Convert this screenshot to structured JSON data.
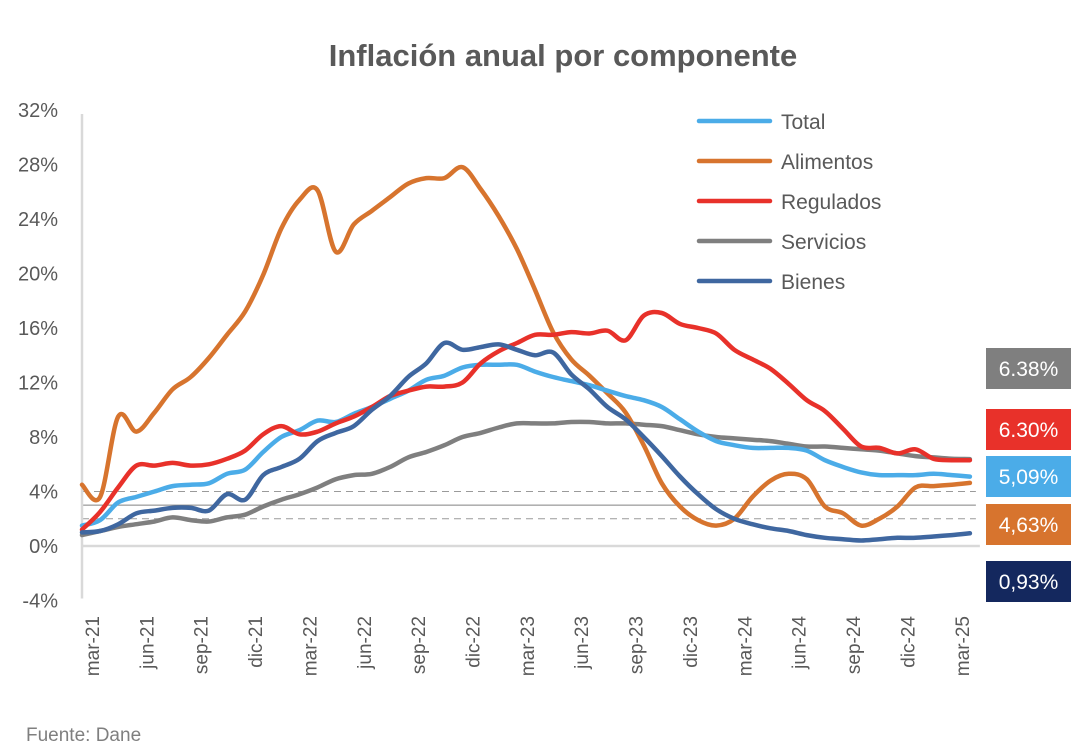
{
  "chart_data": {
    "type": "line",
    "title": "Inflación anual por componente",
    "xlabel": "",
    "ylabel": "",
    "ylim": [
      -4,
      32
    ],
    "yticks": [
      "-4%",
      "0%",
      "4%",
      "8%",
      "12%",
      "16%",
      "20%",
      "24%",
      "28%",
      "32%"
    ],
    "ytick_values": [
      -4,
      0,
      4,
      8,
      12,
      16,
      20,
      24,
      28,
      32
    ],
    "grid": false,
    "legend_position": "top-right",
    "x": [
      "mar-21",
      "abr-21",
      "may-21",
      "jun-21",
      "jul-21",
      "ago-21",
      "sep-21",
      "oct-21",
      "nov-21",
      "dic-21",
      "ene-22",
      "feb-22",
      "mar-22",
      "abr-22",
      "may-22",
      "jun-22",
      "jul-22",
      "ago-22",
      "sep-22",
      "oct-22",
      "nov-22",
      "dic-22",
      "ene-23",
      "feb-23",
      "mar-23",
      "abr-23",
      "may-23",
      "jun-23",
      "jul-23",
      "ago-23",
      "sep-23",
      "oct-23",
      "nov-23",
      "dic-23",
      "ene-24",
      "feb-24",
      "mar-24",
      "abr-24",
      "may-24",
      "jun-24",
      "jul-24",
      "ago-24",
      "sep-24",
      "oct-24",
      "nov-24",
      "dic-24",
      "ene-25",
      "feb-25",
      "mar-25",
      "abr-25"
    ],
    "xticks": [
      "mar-21",
      "jun-21",
      "sep-21",
      "dic-21",
      "mar-22",
      "jun-22",
      "sep-22",
      "dic-22",
      "mar-23",
      "jun-23",
      "sep-23",
      "dic-23",
      "mar-24",
      "jun-24",
      "sep-24",
      "dic-24",
      "mar-25"
    ],
    "reference_lines": [
      {
        "value": 4,
        "style": "dashed"
      },
      {
        "value": 3,
        "style": "solid"
      },
      {
        "value": 2,
        "style": "dashed"
      }
    ],
    "series": [
      {
        "name": "Total",
        "color": "#4bace8",
        "values": [
          1.5,
          1.9,
          3.2,
          3.6,
          4.0,
          4.4,
          4.5,
          4.6,
          5.3,
          5.6,
          6.9,
          8.0,
          8.5,
          9.2,
          9.1,
          9.7,
          10.2,
          10.8,
          11.4,
          12.2,
          12.5,
          13.1,
          13.3,
          13.3,
          13.3,
          12.8,
          12.4,
          12.1,
          11.8,
          11.4,
          11.0,
          10.7,
          10.2,
          9.3,
          8.4,
          7.7,
          7.4,
          7.2,
          7.2,
          7.2,
          7.0,
          6.3,
          5.8,
          5.4,
          5.2,
          5.2,
          5.2,
          5.3,
          5.2,
          5.09
        ]
      },
      {
        "name": "Alimentos",
        "color": "#d7742e",
        "values": [
          4.5,
          3.6,
          9.5,
          8.4,
          9.8,
          11.5,
          12.4,
          13.8,
          15.5,
          17.2,
          19.9,
          23.3,
          25.4,
          26.1,
          21.6,
          23.6,
          24.6,
          25.6,
          26.6,
          27.0,
          27.0,
          27.8,
          26.2,
          24.2,
          21.8,
          18.8,
          15.7,
          13.7,
          12.5,
          11.2,
          9.8,
          7.4,
          4.6,
          2.9,
          1.9,
          1.5,
          2.0,
          3.6,
          4.8,
          5.3,
          4.9,
          2.9,
          2.4,
          1.5,
          2.0,
          2.9,
          4.3,
          4.4,
          4.5,
          4.63
        ]
      },
      {
        "name": "Regulados",
        "color": "#e8312a",
        "values": [
          1.2,
          2.5,
          4.3,
          5.9,
          5.9,
          6.1,
          5.9,
          6.0,
          6.4,
          7.0,
          8.2,
          8.8,
          8.2,
          8.4,
          9.0,
          9.5,
          10.2,
          11.0,
          11.4,
          11.7,
          11.7,
          12.0,
          13.4,
          14.3,
          14.9,
          15.5,
          15.5,
          15.7,
          15.6,
          15.8,
          15.1,
          16.9,
          17.1,
          16.3,
          16.0,
          15.6,
          14.4,
          13.7,
          13.0,
          11.9,
          10.7,
          9.9,
          8.6,
          7.3,
          7.2,
          6.8,
          7.1,
          6.4,
          6.3,
          6.3
        ]
      },
      {
        "name": "Servicios",
        "color": "#7f7f7f",
        "values": [
          0.8,
          1.1,
          1.4,
          1.6,
          1.8,
          2.1,
          1.9,
          1.8,
          2.1,
          2.3,
          2.9,
          3.4,
          3.8,
          4.3,
          4.9,
          5.2,
          5.3,
          5.8,
          6.5,
          6.9,
          7.4,
          8.0,
          8.3,
          8.7,
          9.0,
          9.0,
          9.0,
          9.1,
          9.1,
          9.0,
          9.0,
          8.9,
          8.8,
          8.5,
          8.2,
          8.0,
          7.9,
          7.8,
          7.7,
          7.5,
          7.3,
          7.3,
          7.2,
          7.1,
          7.0,
          6.8,
          6.6,
          6.5,
          6.4,
          6.38
        ]
      },
      {
        "name": "Bienes",
        "color": "#3f67a0",
        "values": [
          1.0,
          1.1,
          1.6,
          2.4,
          2.6,
          2.8,
          2.8,
          2.6,
          3.8,
          3.4,
          5.2,
          5.8,
          6.4,
          7.7,
          8.3,
          8.8,
          10.0,
          11.0,
          12.4,
          13.4,
          14.9,
          14.4,
          14.6,
          14.8,
          14.4,
          14.0,
          14.2,
          12.6,
          11.5,
          10.2,
          9.3,
          8.0,
          6.6,
          5.1,
          3.8,
          2.7,
          2.0,
          1.6,
          1.3,
          1.1,
          0.8,
          0.6,
          0.5,
          0.4,
          0.5,
          0.6,
          0.6,
          0.7,
          0.8,
          0.93
        ]
      }
    ],
    "end_labels": [
      {
        "series": "Servicios",
        "text": "6.38%",
        "bg": "#7f7f7f"
      },
      {
        "series": "Regulados",
        "text": "6.30%",
        "bg": "#e8312a"
      },
      {
        "series": "Total",
        "text": "5,09%",
        "bg": "#4bace8"
      },
      {
        "series": "Alimentos",
        "text": "4,63%",
        "bg": "#d7742e"
      },
      {
        "series": "Bienes",
        "text": "0,93%",
        "bg": "#14285e"
      }
    ],
    "source": "Fuente: Dane"
  }
}
